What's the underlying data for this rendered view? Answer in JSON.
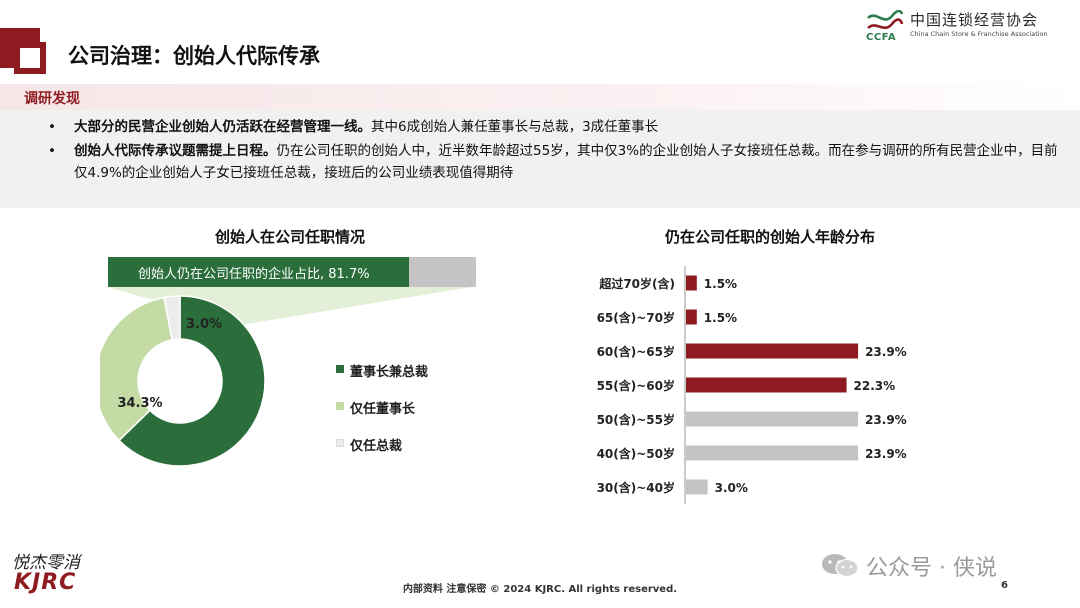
{
  "header": {
    "title": "公司治理：创始人代际传承",
    "org_name_cn": "中国连锁经营协会",
    "org_name_en": "China Chain Store & Franchise Association",
    "org_abbr": "CCFA"
  },
  "findings": {
    "heading": "调研发现",
    "bullets": [
      {
        "bold": "大部分的民营企业创始人仍活跃在经营管理一线。",
        "text": "其中6成创始人兼任董事长与总裁，3成任董事长"
      },
      {
        "bold": "创始人代际传承议题需提上日程。",
        "text": "仍在公司任职的创始人中，近半数年龄超过55岁，其中仅3%的企业创始人子女接班任总裁。而在参与调研的所有民营企业中，目前仅4.9%的企业创始人子女已接班任总裁，接班后的公司业绩表现值得期待"
      }
    ]
  },
  "chart_data": [
    {
      "type": "bar",
      "title": "创始人在公司任职情况",
      "orientation": "horizontal",
      "categories": [
        "创始人仍在公司任职的企业占比"
      ],
      "values": [
        81.7
      ],
      "label": "创始人仍在公司任职的企业占比, 81.7%",
      "ylim": [
        0,
        100
      ],
      "colors": {
        "fill": "#2b6e3c",
        "track": "#c4c4c4"
      }
    },
    {
      "type": "pie",
      "subtype": "donut",
      "slices": [
        {
          "name": "董事长兼总裁",
          "value": 62.7,
          "label": "62.7%",
          "color": "#2b6e3c"
        },
        {
          "name": "仅任董事长",
          "value": 34.3,
          "label": "34.3%",
          "color": "#c5dba6"
        },
        {
          "name": "仅任总裁",
          "value": 3.0,
          "label": "3.0%",
          "color": "#ececec"
        }
      ],
      "legend_position": "right"
    },
    {
      "type": "bar",
      "title": "仍在公司任职的创始人年龄分布",
      "orientation": "horizontal",
      "categories": [
        "超过70岁(含)",
        "65(含)~70岁",
        "60(含)~65岁",
        "55(含)~60岁",
        "50(含)~55岁",
        "40(含)~50岁",
        "30(含)~40岁"
      ],
      "values": [
        1.5,
        1.5,
        23.9,
        22.3,
        23.9,
        23.9,
        3.0
      ],
      "labels": [
        "1.5%",
        "1.5%",
        "23.9%",
        "22.3%",
        "23.9%",
        "23.9%",
        "3.0%"
      ],
      "colors": [
        "#8e1b1f",
        "#8e1b1f",
        "#8e1b1f",
        "#8e1b1f",
        "#c4c4c4",
        "#c4c4c4",
        "#c4c4c4"
      ],
      "xlim": [
        0,
        25
      ],
      "grid": false
    }
  ],
  "footer": {
    "logo_script": "悦杰零消",
    "logo_text": "KJRC",
    "copyright": "内部资料 注意保密 © 2024 KJRC. All rights reserved.",
    "page_number": "6",
    "watermark": "公众号 · 侠说"
  }
}
